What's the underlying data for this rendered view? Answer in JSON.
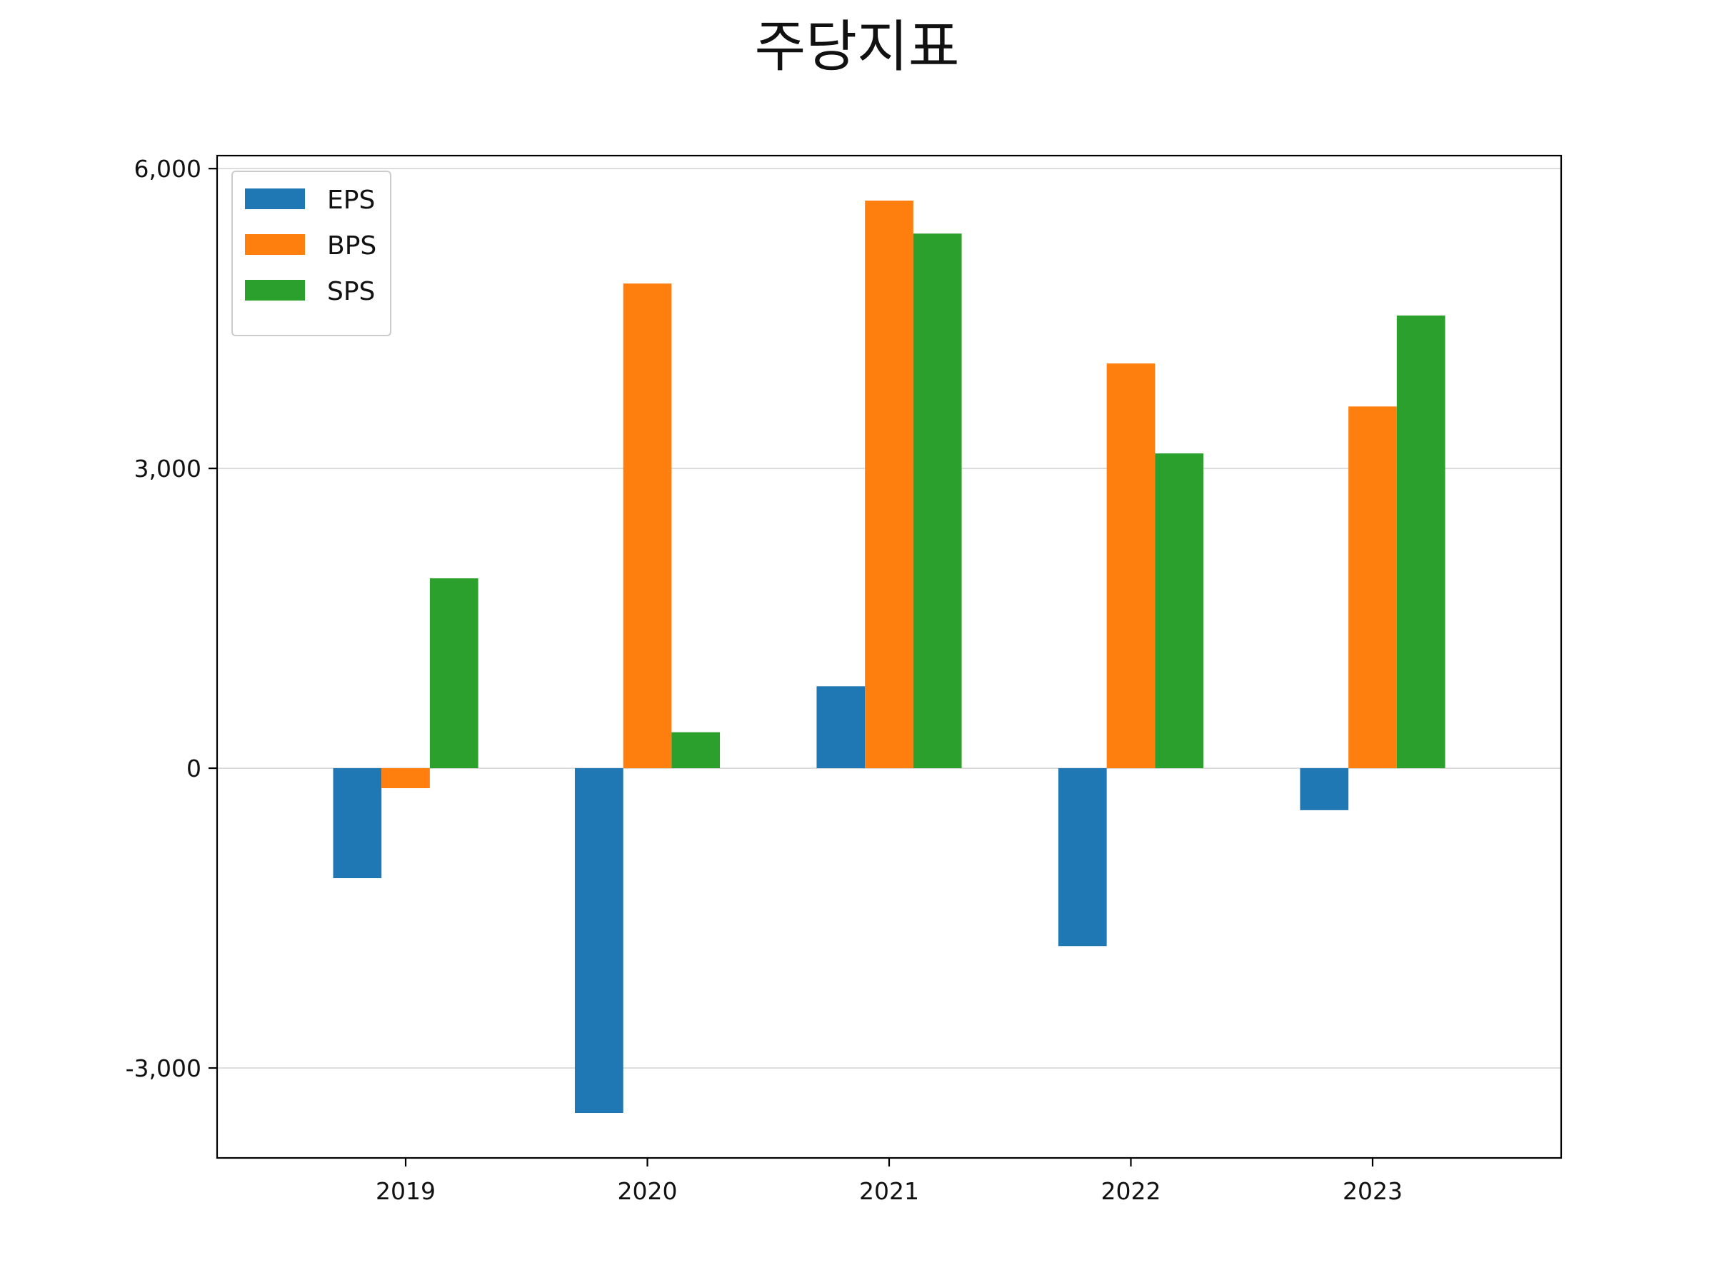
{
  "chart_data": {
    "type": "bar",
    "title": "주당지표",
    "xlabel": "",
    "ylabel": "",
    "categories": [
      "2019",
      "2020",
      "2021",
      "2022",
      "2023"
    ],
    "series": [
      {
        "name": "EPS",
        "color": "#1f77b4",
        "values": [
          -1100,
          -3450,
          820,
          -1780,
          -420
        ]
      },
      {
        "name": "BPS",
        "color": "#ff7f0e",
        "values": [
          -200,
          4850,
          5680,
          4050,
          3620
        ]
      },
      {
        "name": "SPS",
        "color": "#2ca02c",
        "values": [
          1900,
          360,
          5350,
          3150,
          4530
        ]
      }
    ],
    "ylim": [
      -3900,
      6130
    ],
    "yticks": [
      -3000,
      0,
      3000,
      6000
    ],
    "ytick_labels": [
      "-3,000",
      "0",
      "3,000",
      "6,000"
    ],
    "grid": "horizontal",
    "legend_position": "upper-left"
  }
}
